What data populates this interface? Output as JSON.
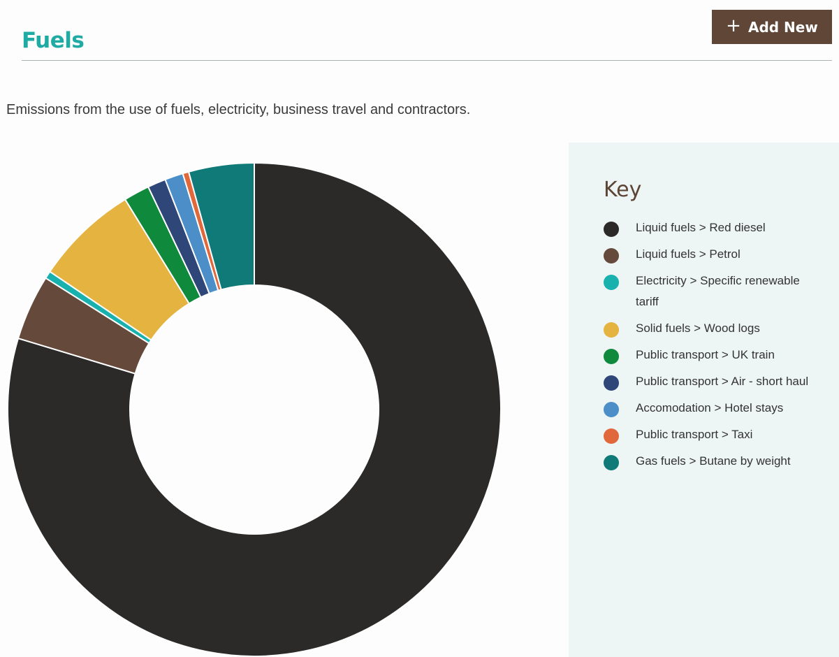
{
  "header": {
    "title": "Fuels",
    "add_button_icon": "plus-icon",
    "add_button_label": "Add New"
  },
  "description": "Emissions from the use of fuels, electricity, business travel and contractors.",
  "key": {
    "title": "Key"
  },
  "colors": {
    "title": "#20aaa4",
    "button": "#5f4636",
    "key_background": "#eef5f5"
  },
  "chart_data": {
    "type": "pie",
    "donut": true,
    "categories": [
      "Liquid fuels > Red diesel",
      "Liquid fuels > Petrol",
      "Electricity > Specific renewable tariff",
      "Solid fuels > Wood logs",
      "Public transport > UK train",
      "Public transport > Air - short haul",
      "Accomodation > Hotel stays",
      "Public transport > Taxi",
      "Gas fuels > Butane by weight"
    ],
    "values": [
      79.9,
      4.3,
      0.5,
      6.8,
      1.7,
      1.2,
      1.2,
      0.4,
      4.3
    ],
    "colors": [
      "#2b2a29",
      "#65493a",
      "#18b1ae",
      "#e5b33f",
      "#0f8a3d",
      "#2f4679",
      "#4c8ec8",
      "#e1683b",
      "#0f7a78"
    ],
    "legend": "right"
  }
}
